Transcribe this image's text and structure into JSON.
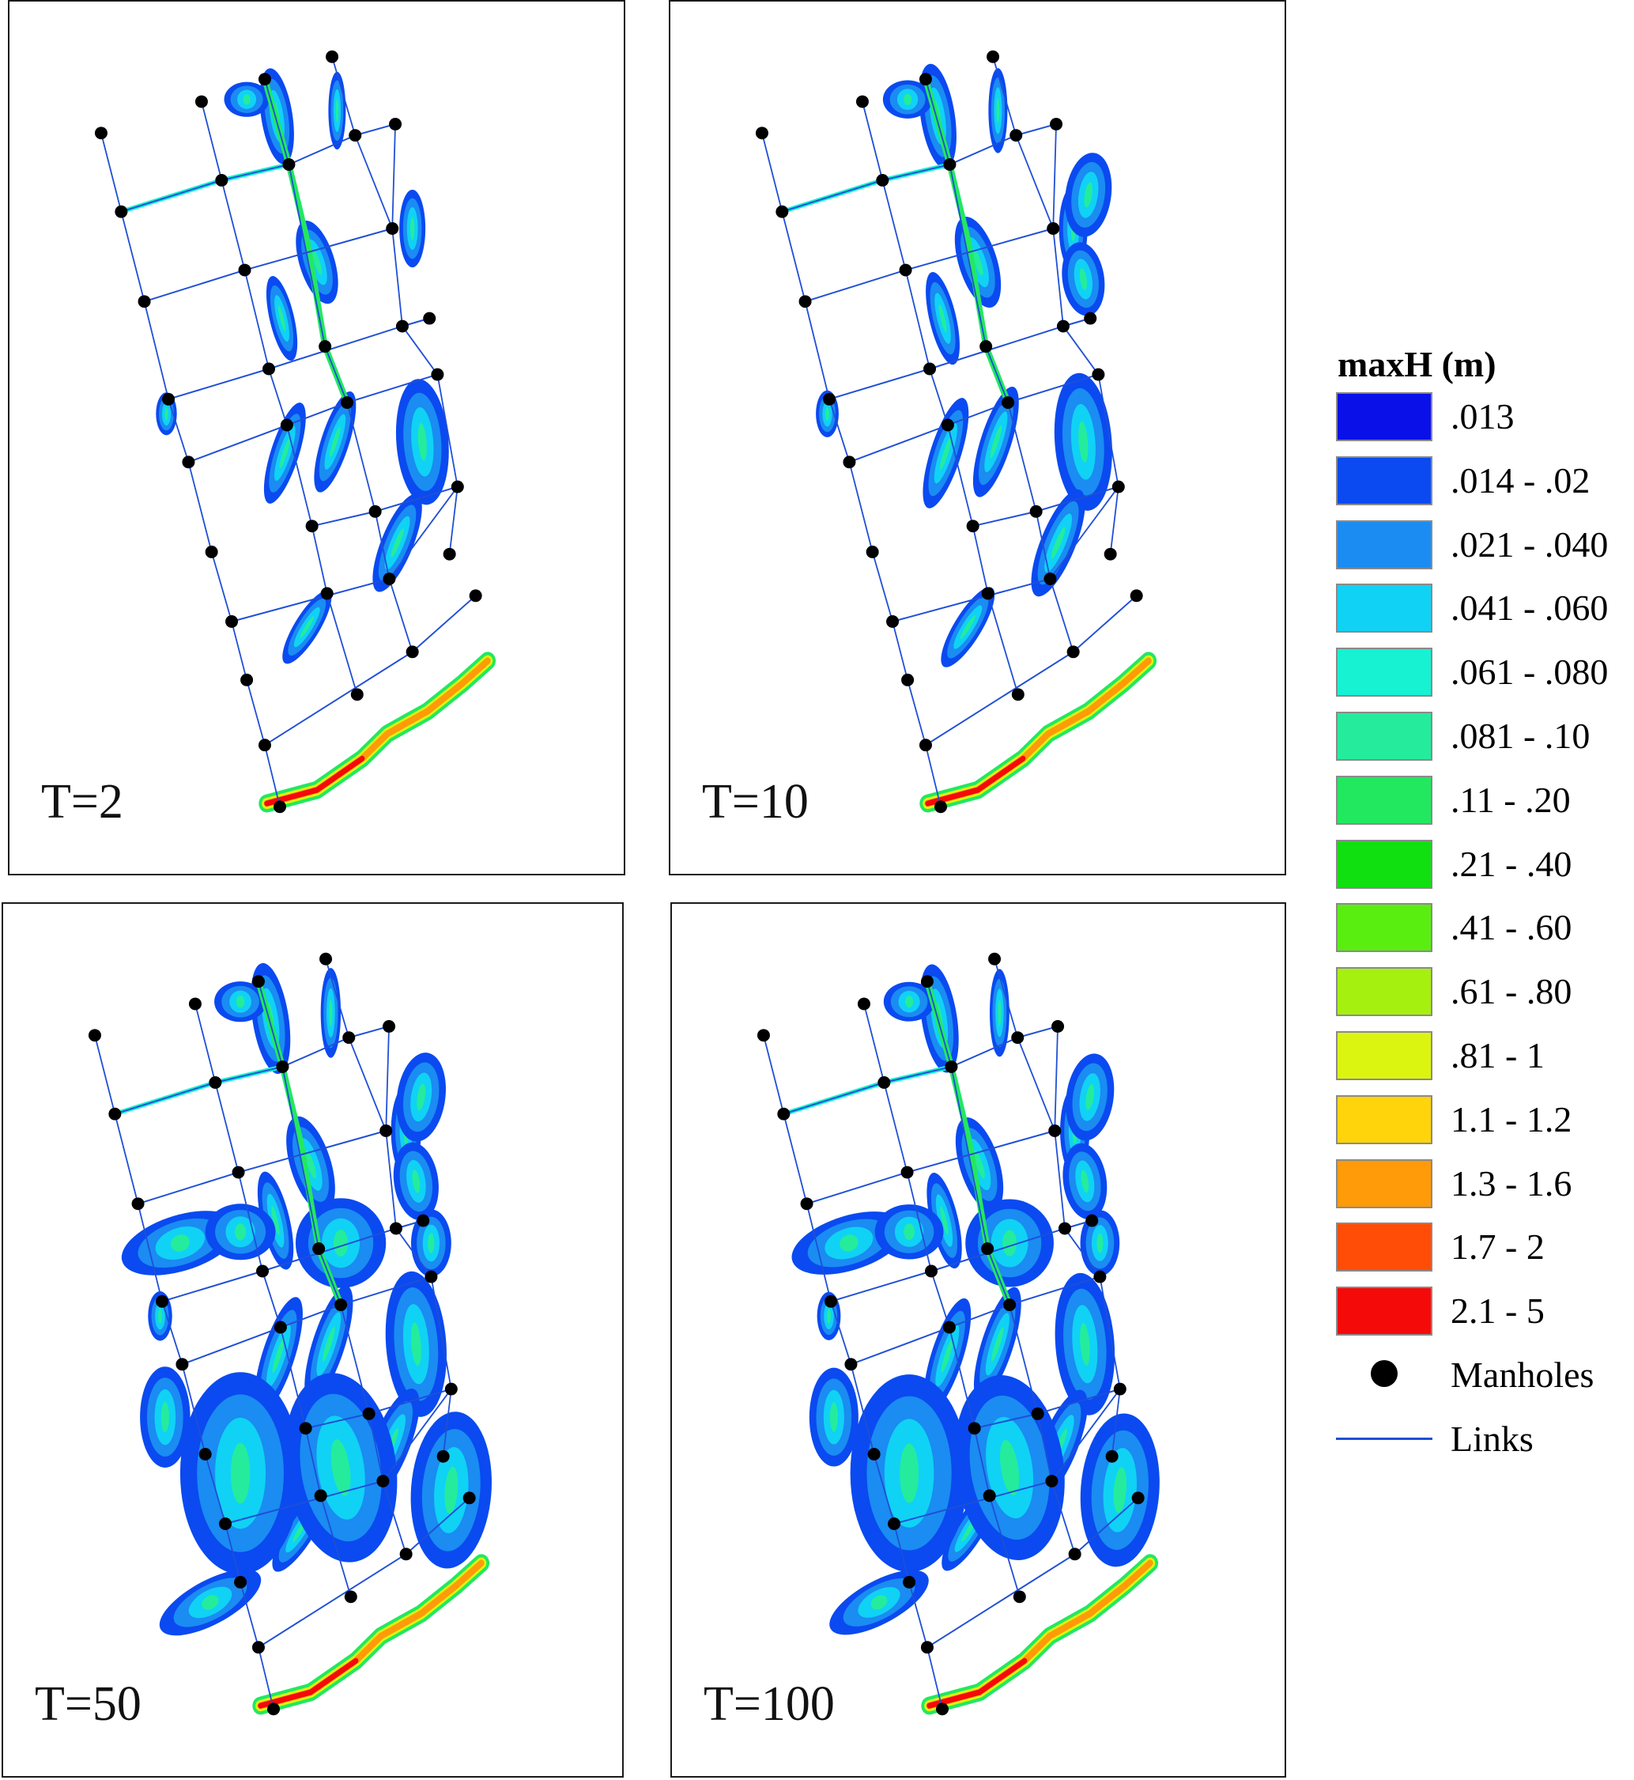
{
  "panels": [
    {
      "label": "T=2",
      "extent": 0.7
    },
    {
      "label": "T=10",
      "extent": 0.88
    },
    {
      "label": "T=50",
      "extent": 1.0
    },
    {
      "label": "T=100",
      "extent": 0.95
    }
  ],
  "legend": {
    "title": "maxH (m)",
    "classes": [
      {
        "label": ".013",
        "color": "#0a10e8"
      },
      {
        "label": ".014 - .02",
        "color": "#0a4af0"
      },
      {
        "label": ".021 - .040",
        "color": "#1a8cf2"
      },
      {
        "label": ".041 - .060",
        "color": "#10d2f5"
      },
      {
        "label": ".061 - .080",
        "color": "#16f2d2"
      },
      {
        "label": ".081 - .10",
        "color": "#24ec9c"
      },
      {
        "label": ".11 - .20",
        "color": "#22e860"
      },
      {
        "label": ".21 - .40",
        "color": "#10e010"
      },
      {
        "label": ".41 - .60",
        "color": "#5aee10"
      },
      {
        "label": ".61 - .80",
        "color": "#a6f010"
      },
      {
        "label": ".81 - 1",
        "color": "#dcf510"
      },
      {
        "label": "1.1 - 1.2",
        "color": "#ffd40a"
      },
      {
        "label": "1.3 - 1.6",
        "color": "#ff9a08"
      },
      {
        "label": "1.7 - 2",
        "color": "#ff4c06"
      },
      {
        "label": "2.1 - 5",
        "color": "#f50a0a"
      }
    ],
    "manholes_label": "Manholes",
    "links_label": "Links",
    "link_color": "#1f4fd6"
  }
}
